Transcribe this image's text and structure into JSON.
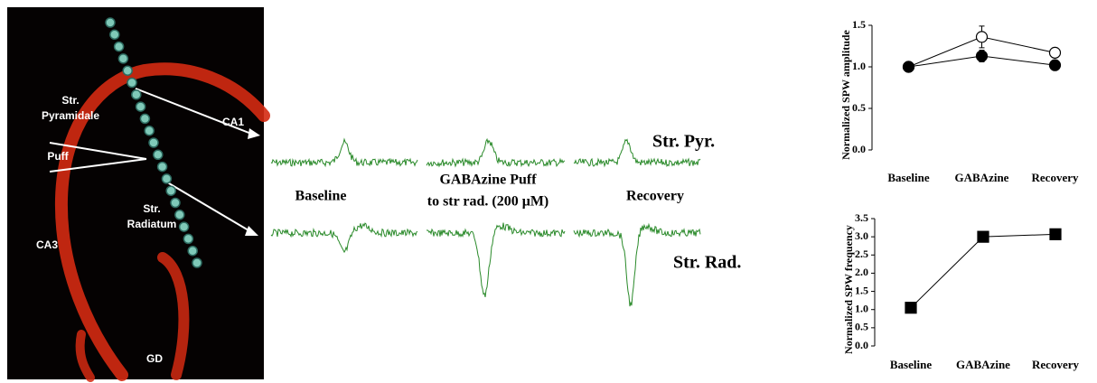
{
  "image_labels": [
    [
      "Str.",
      "Pyramidale"
    ],
    [
      "CA1"
    ],
    [
      "Puff"
    ],
    [
      "Str.",
      "Radiatum"
    ],
    [
      "CA3"
    ],
    [
      "GD"
    ]
  ],
  "trace_labels": {
    "rows": [
      "Str. Pyr.",
      "Str. Rad."
    ],
    "conditions": [
      [
        "Baseline"
      ],
      [
        "GABAzine Puff",
        "to str rad. (200 μM)"
      ],
      [
        "Recovery"
      ]
    ]
  },
  "chart_data": [
    {
      "type": "line",
      "y_label": "Normalized SPW amplitude",
      "categories": [
        "Baseline",
        "GABAzine",
        "Recovery"
      ],
      "series": [
        {
          "color": "#000000",
          "marker": "open-circle",
          "values": [
            1.0,
            1.36,
            1.17
          ],
          "errors": [
            0.03,
            0.13,
            0.06
          ]
        },
        {
          "color": "#000000",
          "marker": "filled-circle",
          "values": [
            1.0,
            1.13,
            1.02
          ],
          "errors": [
            0.03,
            0.07,
            0.05
          ]
        }
      ],
      "ylim": [
        0,
        1.5
      ],
      "yticks": [
        {
          "value": 0,
          "label": "0.0"
        },
        {
          "value": 0.5,
          "label": "0.5"
        },
        {
          "value": 1,
          "label": "1.0"
        },
        {
          "value": 1.5,
          "label": "1.5"
        }
      ]
    },
    {
      "type": "line",
      "y_label": "Normalized SPW frequency",
      "categories": [
        "Baseline",
        "GABAzine",
        "Recovery"
      ],
      "series": [
        {
          "color": "#000000",
          "marker": "filled-square",
          "values": [
            1.05,
            3.0,
            3.07
          ],
          "errors": [
            0.03,
            0.1,
            0.04
          ]
        }
      ],
      "ylim": [
        0,
        3.5
      ],
      "yticks": [
        {
          "value": 0,
          "label": "0.0"
        },
        {
          "value": 0.5,
          "label": "0.5"
        },
        {
          "value": 1,
          "label": "1.0"
        },
        {
          "value": 1.5,
          "label": "1.5"
        },
        {
          "value": 2,
          "label": "2.0"
        },
        {
          "value": 2.5,
          "label": "2.5"
        },
        {
          "value": 3,
          "label": "3.0"
        },
        {
          "value": 3.5,
          "label": "3.5"
        }
      ]
    }
  ]
}
